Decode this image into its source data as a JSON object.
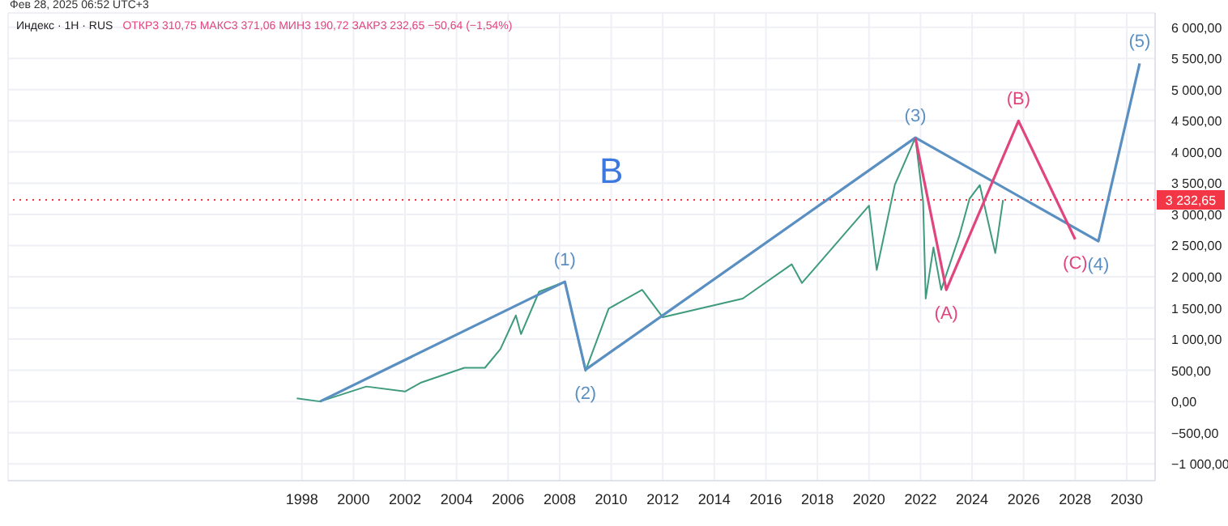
{
  "chart_data": {
    "type": "line",
    "title": "Индекс · 1H · RUS",
    "subtitle": "ОТКР3 310,75  МАКС3 371,06  МИН3 190,72  ЗАКР3 232,65  −50,64 (−1,54%)",
    "annotations": [
      "Фев 28, 2025 06:52 UTC+3",
      {
        "text": "(1)",
        "x": 2008.2,
        "y": 1920
      },
      {
        "text": "(2)",
        "x": 2009,
        "y": 510
      },
      {
        "text": "(3)",
        "x": 2021.8,
        "y": 4230
      },
      {
        "text": "(4)",
        "x": 2028.9,
        "y": 2570
      },
      {
        "text": "(5)",
        "x": 2030.5,
        "y": 5420
      },
      {
        "text": "(A)",
        "x": 2023,
        "y": 1790
      },
      {
        "text": "(B)",
        "x": 2025.8,
        "y": 4500
      },
      {
        "text": "(C)",
        "x": 2028,
        "y": 2600
      },
      "B"
    ],
    "series": [
      {
        "color": "#3f9b7e",
        "x": [
          1997.8,
          1998.7,
          2000.5,
          2002,
          2002.6,
          2004.3,
          2005.1,
          2005.7,
          2006.3,
          2006.5,
          2007.2,
          2008.2,
          2009,
          2009.9,
          2011.2,
          2012,
          2015.1,
          2017,
          2017.4,
          2020,
          2020.3,
          2021,
          2021.8,
          2022.1,
          2022.2,
          2022.5,
          2022.8,
          2023.5,
          2023.9,
          2024.3,
          2024.7,
          2024.9,
          2025.2
        ],
        "values": [
          50,
          0,
          240,
          160,
          300,
          540,
          540,
          840,
          1380,
          1080,
          1760,
          1920,
          490,
          1490,
          1790,
          1350,
          1650,
          2200,
          1900,
          3140,
          2110,
          3470,
          4230,
          3200,
          1650,
          2470,
          1790,
          2650,
          3250,
          3470,
          2740,
          2380,
          3230
        ]
      },
      {
        "color": "#5a8fc2",
        "x": [
          1998.7,
          2008.2,
          2009,
          2021.8,
          2028.9,
          2030.5
        ],
        "values": [
          0,
          1920,
          510,
          4230,
          2570,
          5420
        ]
      },
      {
        "color": "#e0457e",
        "x": [
          2021.8,
          2023,
          2025.8,
          2028
        ],
        "values": [
          4230,
          1790,
          4500,
          2600
        ]
      }
    ],
    "xlim": [
      1986.6,
      2031.1
    ],
    "xticks": [
      1998,
      2000,
      2002,
      2004,
      2006,
      2008,
      2010,
      2012,
      2014,
      2016,
      2018,
      2020,
      2022,
      2024,
      2026,
      2028,
      2030
    ],
    "ylim": [
      -1270,
      6230
    ],
    "yticks": [
      {
        "value": -1000,
        "label": "−1 000,00"
      },
      {
        "value": -500,
        "label": "−500,00"
      },
      {
        "value": 0,
        "label": "0,00"
      },
      {
        "value": 500,
        "label": "500,00"
      },
      {
        "value": 1000,
        "label": "1 000,00"
      },
      {
        "value": 1500,
        "label": "1 500,00"
      },
      {
        "value": 2000,
        "label": "2 000,00"
      },
      {
        "value": 2500,
        "label": "2 500,00"
      },
      {
        "value": 3000,
        "label": "3 000,00"
      },
      {
        "value": 3500,
        "label": "3 500,00"
      },
      {
        "value": 4000,
        "label": "4 000,00"
      },
      {
        "value": 4500,
        "label": "4 500,00"
      },
      {
        "value": 5000,
        "label": "5 000,00"
      },
      {
        "value": 5500,
        "label": "5 500,00"
      },
      {
        "value": 6000,
        "label": "6 000,00"
      }
    ],
    "ref_lines": [
      {
        "axis": "y",
        "value": 3232.65,
        "label": "3 232,65",
        "color": "#f23645",
        "line_style": "dotted"
      }
    ],
    "grid": true
  }
}
